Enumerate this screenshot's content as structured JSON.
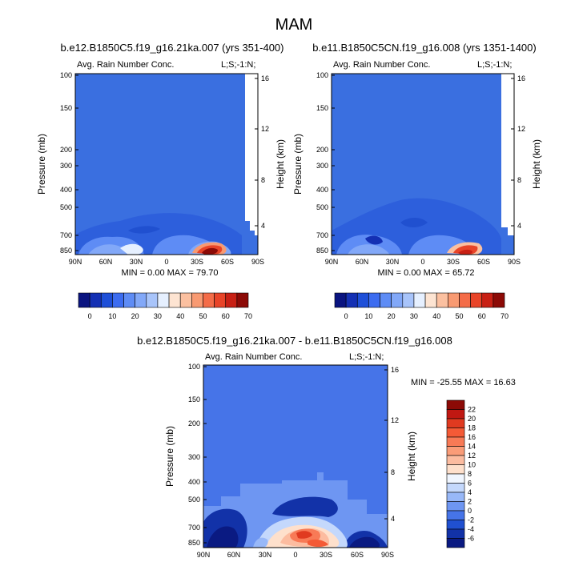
{
  "figure": {
    "title": "MAM"
  },
  "colors": {
    "field_bg": "#3a6fe0",
    "frame": "#000000"
  },
  "chart_data": [
    {
      "type": "heatmap",
      "panel": "top-left",
      "subtitle": "b.e12.B1850C5.f19_g16.21ka.007 (yrs 351-400)",
      "left_label": "Avg. Rain Number Conc.",
      "right_label": "L;S;-1:N;",
      "ylabel": "Pressure (mb)",
      "y2label": "Height (km)",
      "xticks": [
        "90N",
        "60N",
        "30N",
        "0",
        "30S",
        "60S",
        "90S"
      ],
      "yticks": [
        "100",
        "150",
        "200",
        "300",
        "400",
        "500",
        "700",
        "850"
      ],
      "y2ticks": [
        "16",
        "12",
        "8",
        "4"
      ],
      "stats": "MIN =   0.00   MAX =  79.70"
    },
    {
      "type": "heatmap",
      "panel": "top-right",
      "subtitle": "b.e11.B1850C5CN.f19_g16.008 (yrs 1351-1400)",
      "left_label": "Avg. Rain Number Conc.",
      "right_label": "L;S;-1:N;",
      "ylabel": "Pressure (mb)",
      "y2label": "Height (km)",
      "xticks": [
        "90N",
        "60N",
        "30N",
        "0",
        "30S",
        "60S",
        "90S"
      ],
      "yticks": [
        "100",
        "150",
        "200",
        "300",
        "400",
        "500",
        "700",
        "850"
      ],
      "y2ticks": [
        "16",
        "12",
        "8",
        "4"
      ],
      "stats": "MIN =   0.00   MAX =  65.72"
    },
    {
      "type": "heatmap",
      "panel": "bottom",
      "subtitle": "b.e12.B1850C5.f19_g16.21ka.007 - b.e11.B1850C5CN.f19_g16.008",
      "left_label": "Avg. Rain Number Conc.",
      "right_label": "L;S;-1:N;",
      "ylabel": "Pressure (mb)",
      "y2label": "Height (km)",
      "xticks": [
        "90N",
        "60N",
        "30N",
        "0",
        "30S",
        "60S",
        "90S"
      ],
      "yticks": [
        "100",
        "150",
        "200",
        "300",
        "400",
        "500",
        "700",
        "850"
      ],
      "y2ticks": [
        "16",
        "12",
        "8",
        "4"
      ],
      "stats": "MIN = -25.55   MAX =  16.63"
    }
  ],
  "colorbar_abs": {
    "labels": [
      "0",
      "10",
      "20",
      "30",
      "40",
      "50",
      "60",
      "70"
    ],
    "colors": [
      "#0a1480",
      "#1430b4",
      "#1e4fd8",
      "#3c6cf0",
      "#5e8cf5",
      "#82a8f8",
      "#a8c4fa",
      "#e6f0ff",
      "#fde4d2",
      "#fbc0a0",
      "#f89a72",
      "#f46c48",
      "#e84428",
      "#c82014",
      "#8c0a06"
    ]
  },
  "colorbar_diff": {
    "labels": [
      "22",
      "20",
      "18",
      "16",
      "14",
      "12",
      "10",
      "8",
      "6",
      "4",
      "2",
      "0",
      "-2",
      "-4",
      "-6"
    ],
    "colors": [
      "#8c0a06",
      "#c01812",
      "#e03a20",
      "#f45a36",
      "#f87a56",
      "#fa9c78",
      "#fcbca0",
      "#fee0cc",
      "#f0f6ff",
      "#c4d8fc",
      "#98b8f8",
      "#6e96f2",
      "#4674e8",
      "#2050d0",
      "#1232a8",
      "#0a1a82"
    ]
  }
}
